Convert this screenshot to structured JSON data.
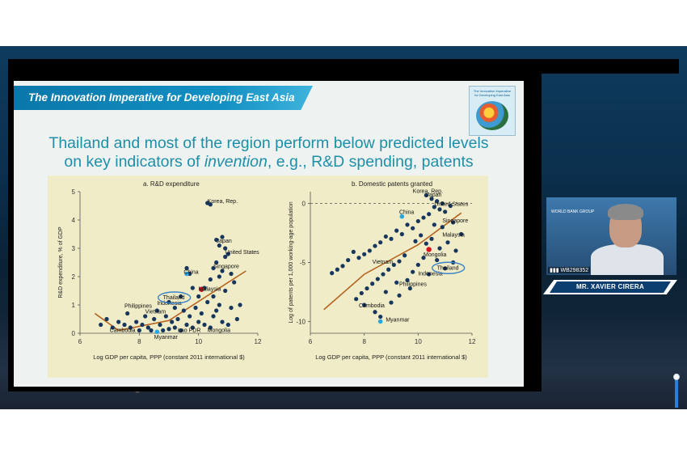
{
  "slide": {
    "banner_title": "The Innovation Imperative for Developing East Asia",
    "cover_title": "The Innovation Imperative for Developing East Asia",
    "headline_line1": "Thailand and most of the region perform below predicted levels",
    "headline_line2_pre": "on key indicators of ",
    "headline_line2_em": "invention",
    "headline_line2_post": ", e.g., R&D spending, patents"
  },
  "speaker": {
    "name": "MR. XAVIER CIRERA",
    "id_label": "WB298352",
    "logo_text": "WORLD BANK GROUP"
  },
  "colors": {
    "dot": "#16365e",
    "highlight_dot": "#d0151f",
    "china_dot": "#2aa5e0",
    "fit_line": "#b5621f",
    "circle": "#3b84c8"
  },
  "chart_data": [
    {
      "type": "scatter",
      "title": "a. R&D expenditure",
      "xlabel": "Log GDP per capita, PPP (constant 2011 international $)",
      "ylabel": "R&D expenditure, % of GDP",
      "xlim": [
        6,
        12
      ],
      "ylim": [
        0,
        5
      ],
      "xticks": [
        "6",
        "8",
        "10",
        "12"
      ],
      "yticks": [
        "0",
        "1",
        "2",
        "3",
        "4",
        "5"
      ],
      "fit_line": [
        [
          6.5,
          0.7
        ],
        [
          7.3,
          0.1
        ],
        [
          9.0,
          0.45
        ],
        [
          11.6,
          2.2
        ]
      ],
      "labels": [
        {
          "text": "Korea, Rep.",
          "x": 10.3,
          "y": 4.6
        },
        {
          "text": "Japan",
          "x": 10.6,
          "y": 3.2
        },
        {
          "text": "United States",
          "x": 10.9,
          "y": 2.8
        },
        {
          "text": "Singapore",
          "x": 10.5,
          "y": 2.3
        },
        {
          "text": "China",
          "x": 9.5,
          "y": 2.1
        },
        {
          "text": "Malaysia",
          "x": 10.0,
          "y": 1.5
        },
        {
          "text": "Thailand",
          "x": 8.8,
          "y": 1.2
        },
        {
          "text": "Indonesia",
          "x": 8.6,
          "y": 1.0
        },
        {
          "text": "Philippines",
          "x": 7.5,
          "y": 0.9
        },
        {
          "text": "Vietnam",
          "x": 8.2,
          "y": 0.7
        },
        {
          "text": "Cambodia",
          "x": 7.0,
          "y": 0.05
        },
        {
          "text": "Lao PDR",
          "x": 9.3,
          "y": 0.05
        },
        {
          "text": "Mongolia",
          "x": 10.3,
          "y": 0.05
        },
        {
          "text": "Myanmar",
          "x": 8.5,
          "y": -0.2
        }
      ],
      "points": [
        {
          "x": 10.3,
          "y": 4.6
        },
        {
          "x": 10.4,
          "y": 4.55
        },
        {
          "x": 10.6,
          "y": 3.3
        },
        {
          "x": 10.8,
          "y": 3.4
        },
        {
          "x": 10.7,
          "y": 3.1
        },
        {
          "x": 10.9,
          "y": 3.0
        },
        {
          "x": 11.0,
          "y": 2.8
        },
        {
          "x": 10.9,
          "y": 2.7
        },
        {
          "x": 10.6,
          "y": 2.5
        },
        {
          "x": 10.8,
          "y": 2.2
        },
        {
          "x": 10.5,
          "y": 2.3
        },
        {
          "x": 10.7,
          "y": 2.0
        },
        {
          "x": 10.4,
          "y": 1.9
        },
        {
          "x": 11.1,
          "y": 2.1
        },
        {
          "x": 9.7,
          "y": 2.1
        },
        {
          "x": 9.6,
          "y": 2.3
        },
        {
          "x": 10.2,
          "y": 1.6
        },
        {
          "x": 10.0,
          "y": 1.3
        },
        {
          "x": 9.8,
          "y": 1.6
        },
        {
          "x": 10.3,
          "y": 1.1
        },
        {
          "x": 10.5,
          "y": 1.3
        },
        {
          "x": 10.9,
          "y": 1.5
        },
        {
          "x": 11.2,
          "y": 1.8
        },
        {
          "x": 11.4,
          "y": 1.0
        },
        {
          "x": 10.6,
          "y": 0.8
        },
        {
          "x": 10.1,
          "y": 0.7
        },
        {
          "x": 9.9,
          "y": 0.9
        },
        {
          "x": 9.7,
          "y": 0.6
        },
        {
          "x": 9.5,
          "y": 0.8
        },
        {
          "x": 9.3,
          "y": 0.5
        },
        {
          "x": 9.1,
          "y": 0.4
        },
        {
          "x": 8.9,
          "y": 0.6
        },
        {
          "x": 8.7,
          "y": 0.3
        },
        {
          "x": 8.5,
          "y": 0.5
        },
        {
          "x": 8.3,
          "y": 0.2
        },
        {
          "x": 8.1,
          "y": 0.3
        },
        {
          "x": 7.9,
          "y": 0.4
        },
        {
          "x": 7.7,
          "y": 0.2
        },
        {
          "x": 7.5,
          "y": 0.3
        },
        {
          "x": 7.3,
          "y": 0.4
        },
        {
          "x": 7.1,
          "y": 0.2
        },
        {
          "x": 6.9,
          "y": 0.5
        },
        {
          "x": 6.7,
          "y": 0.3
        },
        {
          "x": 7.6,
          "y": 0.7
        },
        {
          "x": 8.0,
          "y": 0.1
        },
        {
          "x": 8.4,
          "y": 0.1
        },
        {
          "x": 8.8,
          "y": 0.1
        },
        {
          "x": 9.0,
          "y": 0.15
        },
        {
          "x": 9.2,
          "y": 0.2
        },
        {
          "x": 9.4,
          "y": 0.1
        },
        {
          "x": 9.6,
          "y": 0.3
        },
        {
          "x": 9.8,
          "y": 0.2
        },
        {
          "x": 10.0,
          "y": 0.4
        },
        {
          "x": 10.2,
          "y": 0.3
        },
        {
          "x": 10.4,
          "y": 0.2
        },
        {
          "x": 10.8,
          "y": 0.4
        },
        {
          "x": 11.0,
          "y": 0.3
        },
        {
          "x": 11.3,
          "y": 0.5
        },
        {
          "x": 9.0,
          "y": 1.1
        },
        {
          "x": 9.2,
          "y": 0.9
        },
        {
          "x": 8.6,
          "y": 0.8
        },
        {
          "x": 8.2,
          "y": 0.6
        },
        {
          "x": 10.7,
          "y": 1.0
        },
        {
          "x": 10.5,
          "y": 0.6
        },
        {
          "x": 11.1,
          "y": 0.9
        },
        {
          "x": 9.4,
          "y": 1.3
        }
      ],
      "highlight": [
        {
          "x": 10.1,
          "y": 1.55
        }
      ],
      "accent": [
        {
          "x": 9.6,
          "y": 2.1
        },
        {
          "x": 8.6,
          "y": 0.05
        }
      ]
    },
    {
      "type": "scatter",
      "title": "b. Domestic patents granted",
      "xlabel": "Log GDP per capita, PPP (constant 2011 international $)",
      "ylabel": "Log of patents per 1,000 working-age population",
      "xlim": [
        6,
        12
      ],
      "ylim": [
        -11,
        1
      ],
      "xticks": [
        "6",
        "8",
        "10",
        "12"
      ],
      "yticks": [
        "0",
        "-5",
        "-10"
      ],
      "fit_line": [
        [
          6.5,
          -9.0
        ],
        [
          8.0,
          -6.0
        ],
        [
          10.0,
          -3.5
        ],
        [
          11.6,
          -0.8
        ]
      ],
      "labels": [
        {
          "text": "Korea, Rep.",
          "x": 9.8,
          "y": 0.9
        },
        {
          "text": "Japan",
          "x": 10.3,
          "y": 0.6
        },
        {
          "text": "United States",
          "x": 10.6,
          "y": -0.2
        },
        {
          "text": "China",
          "x": 9.3,
          "y": -0.9
        },
        {
          "text": "Singapore",
          "x": 10.9,
          "y": -1.6
        },
        {
          "text": "Malaysia",
          "x": 10.9,
          "y": -2.8
        },
        {
          "text": "Mongolia",
          "x": 10.2,
          "y": -4.5
        },
        {
          "text": "Vietnam",
          "x": 8.3,
          "y": -5.1
        },
        {
          "text": "Thailand",
          "x": 10.7,
          "y": -5.6
        },
        {
          "text": "Indonesia",
          "x": 10.0,
          "y": -6.1
        },
        {
          "text": "Philippines",
          "x": 9.3,
          "y": -7.0
        },
        {
          "text": "Cambodia",
          "x": 7.8,
          "y": -8.8
        },
        {
          "text": "Myanmar",
          "x": 8.8,
          "y": -10.0
        }
      ],
      "points": [
        {
          "x": 10.3,
          "y": 0.7
        },
        {
          "x": 10.5,
          "y": 0.4
        },
        {
          "x": 10.7,
          "y": 0.2
        },
        {
          "x": 10.9,
          "y": 0.0
        },
        {
          "x": 10.6,
          "y": -0.3
        },
        {
          "x": 10.8,
          "y": -0.5
        },
        {
          "x": 11.0,
          "y": -0.7
        },
        {
          "x": 11.2,
          "y": -0.2
        },
        {
          "x": 10.4,
          "y": -0.9
        },
        {
          "x": 10.2,
          "y": -1.2
        },
        {
          "x": 10.0,
          "y": -1.5
        },
        {
          "x": 10.6,
          "y": -1.8
        },
        {
          "x": 10.9,
          "y": -2.0
        },
        {
          "x": 11.3,
          "y": -1.6
        },
        {
          "x": 9.8,
          "y": -2.1
        },
        {
          "x": 9.6,
          "y": -1.8
        },
        {
          "x": 9.4,
          "y": -2.6
        },
        {
          "x": 9.2,
          "y": -2.3
        },
        {
          "x": 9.0,
          "y": -3.0
        },
        {
          "x": 8.8,
          "y": -2.8
        },
        {
          "x": 8.6,
          "y": -3.3
        },
        {
          "x": 8.4,
          "y": -3.6
        },
        {
          "x": 8.2,
          "y": -4.0
        },
        {
          "x": 8.0,
          "y": -4.3
        },
        {
          "x": 7.8,
          "y": -4.6
        },
        {
          "x": 7.6,
          "y": -4.1
        },
        {
          "x": 7.4,
          "y": -4.8
        },
        {
          "x": 7.2,
          "y": -5.3
        },
        {
          "x": 7.0,
          "y": -5.6
        },
        {
          "x": 6.8,
          "y": -5.9
        },
        {
          "x": 9.9,
          "y": -3.2
        },
        {
          "x": 10.1,
          "y": -2.7
        },
        {
          "x": 10.3,
          "y": -3.4
        },
        {
          "x": 10.5,
          "y": -3.0
        },
        {
          "x": 10.8,
          "y": -3.8
        },
        {
          "x": 11.1,
          "y": -3.3
        },
        {
          "x": 11.4,
          "y": -4.0
        },
        {
          "x": 11.6,
          "y": -2.6
        },
        {
          "x": 9.5,
          "y": -4.4
        },
        {
          "x": 9.3,
          "y": -4.9
        },
        {
          "x": 9.1,
          "y": -5.2
        },
        {
          "x": 8.9,
          "y": -5.6
        },
        {
          "x": 8.7,
          "y": -6.0
        },
        {
          "x": 8.5,
          "y": -6.4
        },
        {
          "x": 8.3,
          "y": -6.8
        },
        {
          "x": 8.1,
          "y": -7.2
        },
        {
          "x": 7.9,
          "y": -7.6
        },
        {
          "x": 7.7,
          "y": -8.1
        },
        {
          "x": 8.0,
          "y": -8.6
        },
        {
          "x": 8.4,
          "y": -9.2
        },
        {
          "x": 8.6,
          "y": -9.6
        },
        {
          "x": 9.0,
          "y": -8.4
        },
        {
          "x": 9.3,
          "y": -7.8
        },
        {
          "x": 9.6,
          "y": -6.5
        },
        {
          "x": 9.8,
          "y": -5.8
        },
        {
          "x": 10.0,
          "y": -5.2
        },
        {
          "x": 10.4,
          "y": -6.0
        },
        {
          "x": 10.7,
          "y": -4.8
        },
        {
          "x": 11.0,
          "y": -5.5
        },
        {
          "x": 11.3,
          "y": -5.0
        },
        {
          "x": 9.7,
          "y": -7.2
        },
        {
          "x": 9.2,
          "y": -6.7
        },
        {
          "x": 8.8,
          "y": -7.5
        },
        {
          "x": 10.2,
          "y": -4.6
        }
      ],
      "highlight": [
        {
          "x": 10.4,
          "y": -3.9
        }
      ],
      "accent": [
        {
          "x": 9.4,
          "y": -1.1
        },
        {
          "x": 8.6,
          "y": -10.0
        }
      ]
    }
  ]
}
